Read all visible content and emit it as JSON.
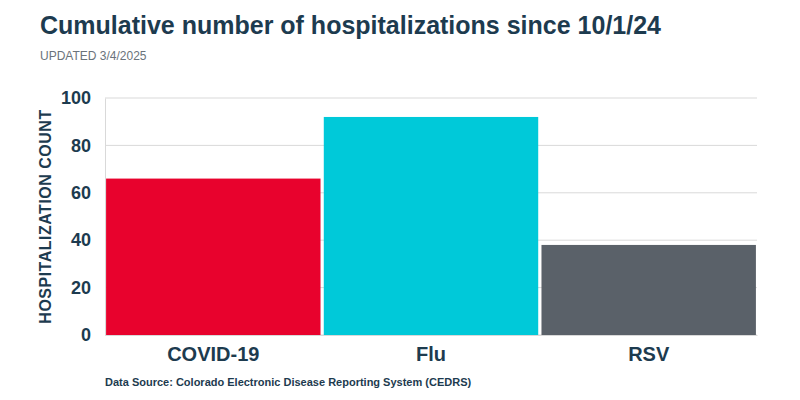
{
  "chart_data": {
    "type": "bar",
    "title": "Cumulative number of hospitalizations since 10/1/24",
    "subtitle": "UPDATED 3/4/2025",
    "y_label": "HOSPITALIZATION COUNT",
    "source": "Data Source: Colorado Electronic Disease Reporting System (CEDRS)",
    "categories": [
      "COVID-19",
      "Flu",
      "RSV"
    ],
    "values": [
      66,
      92,
      38
    ],
    "colors": [
      "#e8022d",
      "#00c9d9",
      "#5a6169"
    ],
    "ylim": [
      0,
      100
    ],
    "yticks": [
      0,
      20,
      40,
      60,
      80,
      100
    ],
    "grid": true
  }
}
